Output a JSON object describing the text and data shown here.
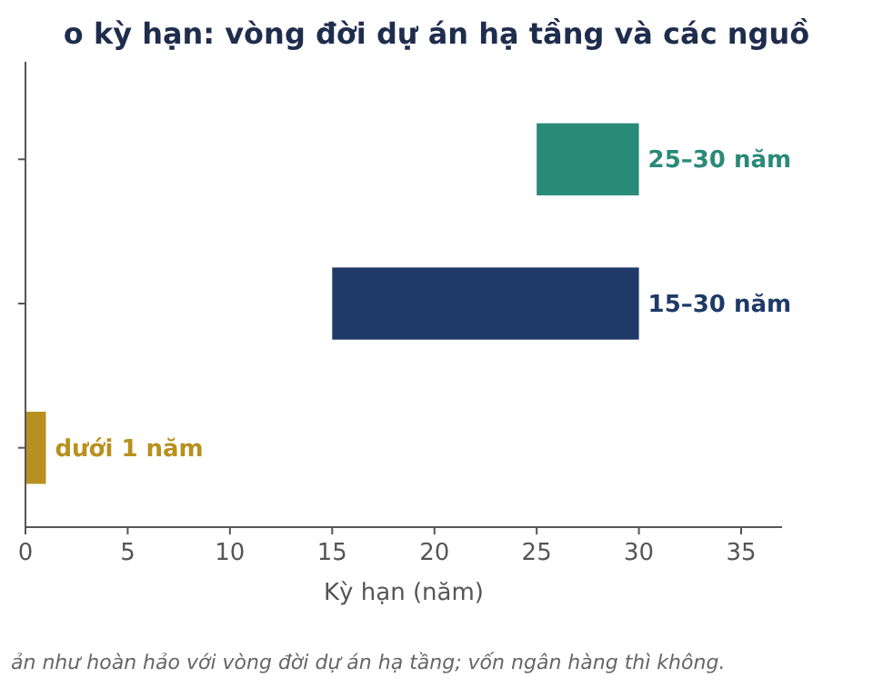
{
  "chart_data": {
    "type": "bar",
    "orientation": "horizontal",
    "title": "o kỳ hạn: vòng đời dự án hạ tầng và các nguồ",
    "xlabel": "Kỳ hạn (năm)",
    "categories": [
      null,
      null,
      null
    ],
    "values": [
      5,
      15,
      1
    ],
    "base": [
      25,
      15,
      0
    ],
    "colors": [
      "#2a8a78",
      "#1f3a68",
      "#b8901f"
    ],
    "value_labels": [
      "25–30 năm",
      "15–30 năm",
      "dưới 1 năm"
    ],
    "xlim": [
      0,
      37
    ],
    "xticks": [
      0,
      5,
      10,
      15,
      20,
      25,
      30,
      35
    ],
    "tick_labels": "x",
    "grid": false,
    "annotations": [
      "ản như hoàn hảo với vòng đời dự án hạ tầng; vốn ngân hàng thì không."
    ]
  }
}
